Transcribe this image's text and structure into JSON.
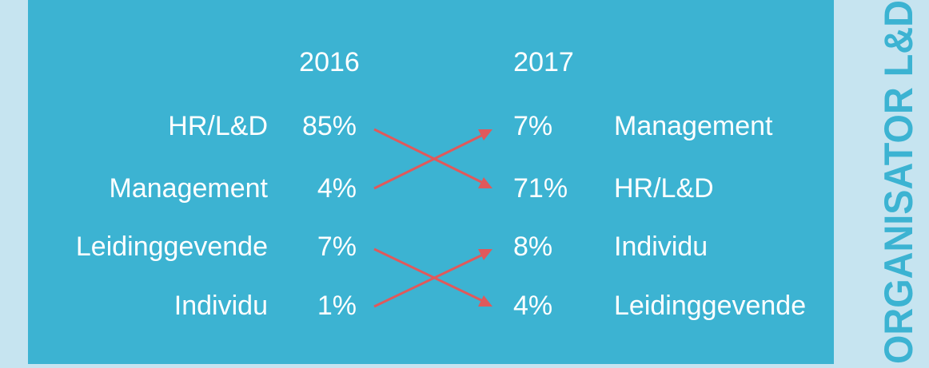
{
  "years": [
    "2016",
    "2017"
  ],
  "left": [
    {
      "label": "HR/L&D",
      "value": "85%"
    },
    {
      "label": "Management",
      "value": "4%"
    },
    {
      "label": "Leidinggevende",
      "value": "7%"
    },
    {
      "label": "Individu",
      "value": "1%"
    }
  ],
  "right": [
    {
      "label": "Management",
      "value": "7%"
    },
    {
      "label": "HR/L&D",
      "value": "71%"
    },
    {
      "label": "Individu",
      "value": "8%"
    },
    {
      "label": "Leidinggevende",
      "value": "4%"
    }
  ],
  "side_title": "ORGANISATOR L&D"
}
